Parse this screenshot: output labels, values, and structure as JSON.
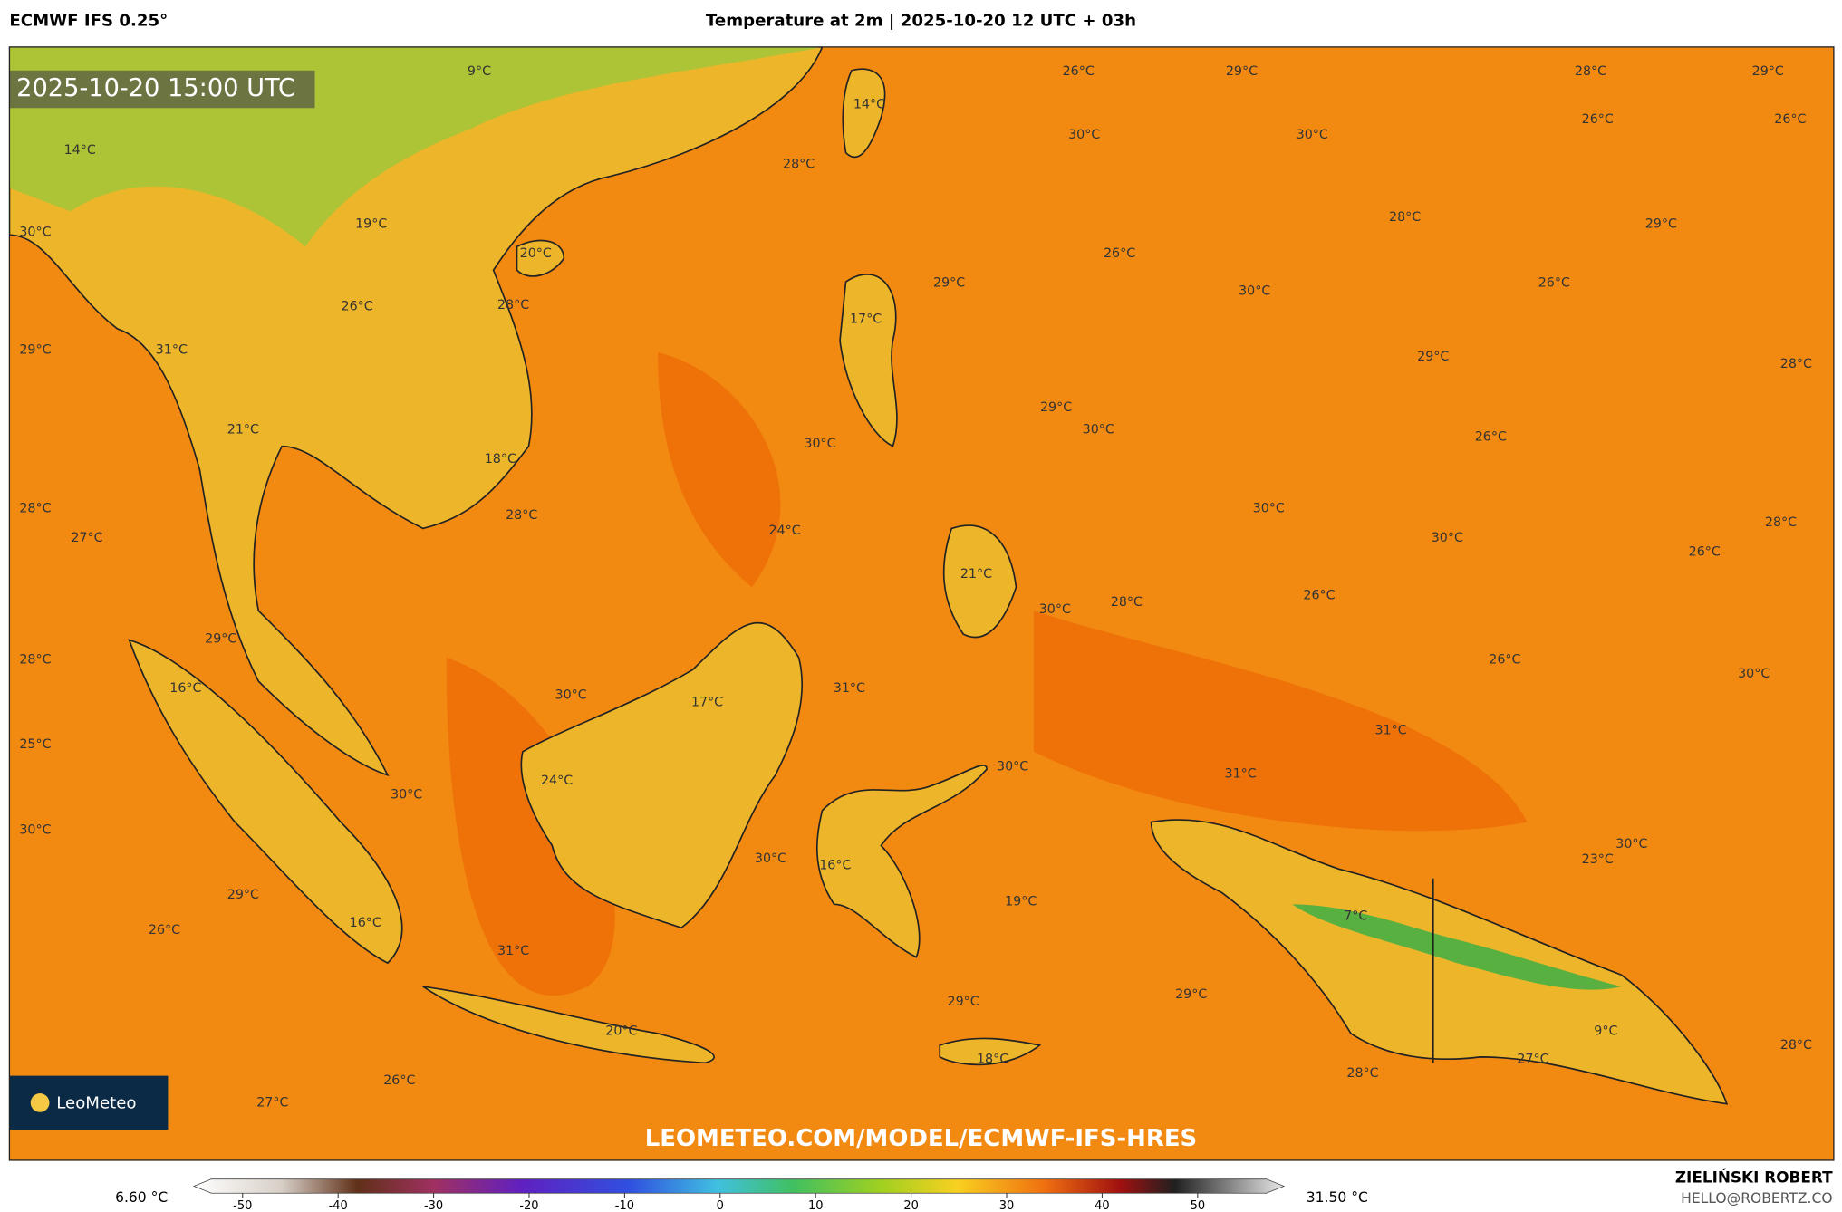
{
  "header": {
    "model": "ECMWF IFS 0.25°",
    "title": "Temperature at 2m | 2025-10-20 12 UTC + 03h"
  },
  "map": {
    "valid_time": "2025-10-20 15:00 UTC",
    "watermark": "LEOMETEO.COM/MODEL/ECMWF-IFS-HRES",
    "logo": "LeoMeteo",
    "labels": [
      "9°C",
      "14°C",
      "14°C",
      "26°C",
      "29°C",
      "28°C",
      "29°C",
      "26°C",
      "26°C",
      "30°C",
      "30°C",
      "28°C",
      "30°C",
      "19°C",
      "20°C",
      "28°C",
      "29°C",
      "26°C",
      "29°C",
      "30°C",
      "26°C",
      "26°C",
      "28°C",
      "17°C",
      "29°C",
      "31°C",
      "29°C",
      "28°C",
      "29°C",
      "30°C",
      "21°C",
      "30°C",
      "26°C",
      "18°C",
      "28°C",
      "28°C",
      "30°C",
      "27°C",
      "24°C",
      "30°C",
      "28°C",
      "26°C",
      "21°C",
      "30°C",
      "28°C",
      "26°C",
      "29°C",
      "28°C",
      "26°C",
      "30°C",
      "16°C",
      "30°C",
      "17°C",
      "31°C",
      "25°C",
      "31°C",
      "30°C",
      "31°C",
      "24°C",
      "30°C",
      "30°C",
      "30°C",
      "30°C",
      "16°C",
      "23°C",
      "29°C",
      "19°C",
      "7°C",
      "16°C",
      "26°C",
      "31°C",
      "29°C",
      "29°C",
      "20°C",
      "9°C",
      "18°C",
      "27°C",
      "28°C",
      "26°C",
      "27°C",
      "28°C"
    ]
  },
  "colorbar": {
    "min_label": "6.60 °C",
    "max_label": "31.50 °C",
    "ticks": [
      -50,
      -40,
      -30,
      -20,
      -10,
      0,
      10,
      20,
      30,
      40,
      50
    ]
  },
  "credits": {
    "author": "ZIELIŃSKI ROBERT",
    "email": "HELLO@ROBERTZ.CO"
  }
}
